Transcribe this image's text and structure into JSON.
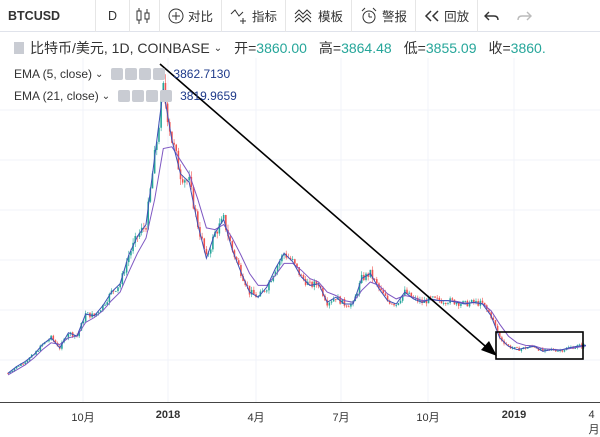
{
  "toolbar": {
    "symbol": "BTCUSD",
    "interval": "D",
    "compare": "对比",
    "indicators": "指标",
    "templates": "模板",
    "alert": "警报",
    "replay": "回放"
  },
  "legend": {
    "title": "比特币/美元, 1D, COINBASE",
    "open_label": "开=",
    "open": "3860.00",
    "high_label": "高=",
    "high": "3864.48",
    "low_label": "低=",
    "low": "3855.09",
    "close_label": "收=",
    "close": "3860."
  },
  "indicators": [
    {
      "label": "EMA (5, close)",
      "value": "3862.7130"
    },
    {
      "label": "EMA (21, close)",
      "value": "3819.9659"
    }
  ],
  "x_axis": {
    "labels": [
      "10月",
      "2018",
      "4月",
      "7月",
      "10月",
      "2019",
      "4月"
    ]
  },
  "colors": {
    "up": "#26a69a",
    "down": "#ef5350",
    "ema_fast": "#3f51b5",
    "ema_slow": "#7e57c2",
    "annotation": "#000000"
  },
  "chart_data": {
    "type": "line",
    "series": [
      {
        "values": [
          2200,
          2600,
          2900,
          3300,
          3900,
          4300,
          3700,
          4600,
          4400,
          5700,
          5600,
          6200,
          7000,
          7500,
          9200,
          10300,
          11000,
          15000,
          19000,
          16000,
          14000,
          13500,
          11000,
          9000,
          10500,
          11300,
          9500,
          8200,
          7000,
          6700,
          7300,
          8400,
          9300,
          8800,
          7900,
          7400,
          7500,
          6400,
          6700,
          6300,
          6300,
          7800,
          8100,
          7200,
          6500,
          6300,
          7000,
          6600,
          6400,
          6600,
          6500,
          6500,
          6400,
          6300,
          6400,
          6300,
          5600,
          4300,
          3800,
          3600,
          3700,
          3800,
          3500,
          3600,
          3550,
          3700,
          3800,
          3860
        ]
      },
      {
        "values": [
          2100,
          2400,
          2700,
          3100,
          3600,
          4000,
          3900,
          4300,
          4400,
          5200,
          5500,
          5900,
          6500,
          7000,
          8200,
          9300,
          10200,
          12500,
          15500,
          15600,
          14800,
          14000,
          12500,
          10800,
          10700,
          11000,
          10200,
          9200,
          8100,
          7400,
          7400,
          8000,
          8700,
          8700,
          8300,
          7800,
          7600,
          7000,
          6800,
          6500,
          6400,
          7100,
          7600,
          7400,
          6900,
          6600,
          6800,
          6700,
          6500,
          6550,
          6500,
          6500,
          6450,
          6350,
          6380,
          6320,
          5900,
          5100,
          4400,
          4000,
          3850,
          3820,
          3650,
          3620,
          3580,
          3650,
          3740,
          3820
        ]
      }
    ]
  }
}
